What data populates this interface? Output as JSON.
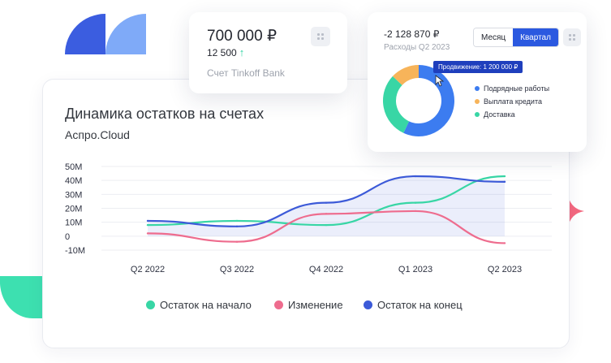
{
  "colors": {
    "teal": "#38d6a5",
    "pink": "#ee6c8e",
    "blue": "#3c5ad8",
    "orange": "#f7b45a",
    "accent": "#2b59e0",
    "star": "#f4687f"
  },
  "card_account": {
    "amount": "700 000 ₽",
    "delta": "12 500",
    "arrow": "↑",
    "account_name": "Счет Tinkoff Bank",
    "menu_icon": "grid-icon"
  },
  "card_expenses": {
    "amount": "-2 128 870 ₽",
    "period_label": "Расходы Q2 2023",
    "toggle": {
      "month": "Месяц",
      "quarter": "Квартал",
      "selected": "Квартал"
    },
    "tooltip": "Продвижение: 1 200 000 ₽",
    "legend": [
      "Подрядные работы",
      "Выплата кредита",
      "Доставка"
    ]
  },
  "main": {
    "title": "Динамика остатков на счетах",
    "subtitle": "Аспро.Cloud"
  },
  "legend": {
    "start": "Остаток на начало",
    "change": "Изменение",
    "end": "Остаток на конец"
  },
  "chart_data": {
    "type": "line",
    "categories": [
      "Q2 2022",
      "Q3 2022",
      "Q4 2022",
      "Q1 2023",
      "Q2 2023"
    ],
    "y_ticks": [
      "50M",
      "40M",
      "30M",
      "20M",
      "10M",
      "0",
      "-10M"
    ],
    "ylim": [
      -10,
      50
    ],
    "series": [
      {
        "name": "Остаток на начало",
        "color": "#38d6a5",
        "values": [
          8,
          11,
          8,
          24,
          43
        ]
      },
      {
        "name": "Изменение",
        "color": "#ee6c8e",
        "values": [
          2,
          -4,
          16,
          18,
          -5
        ]
      },
      {
        "name": "Остаток на конец",
        "color": "#3c5ad8",
        "values": [
          11,
          7,
          24,
          43,
          39
        ]
      }
    ],
    "legend": "bottom"
  },
  "donut_data": {
    "type": "pie",
    "slices": [
      {
        "label": "Подрядные работы",
        "color": "#3c7cf0",
        "value": 57
      },
      {
        "label": "Доставка",
        "color": "#38d6a5",
        "value": 30
      },
      {
        "label": "Выплата кредита",
        "color": "#f7b45a",
        "value": 13
      }
    ]
  }
}
